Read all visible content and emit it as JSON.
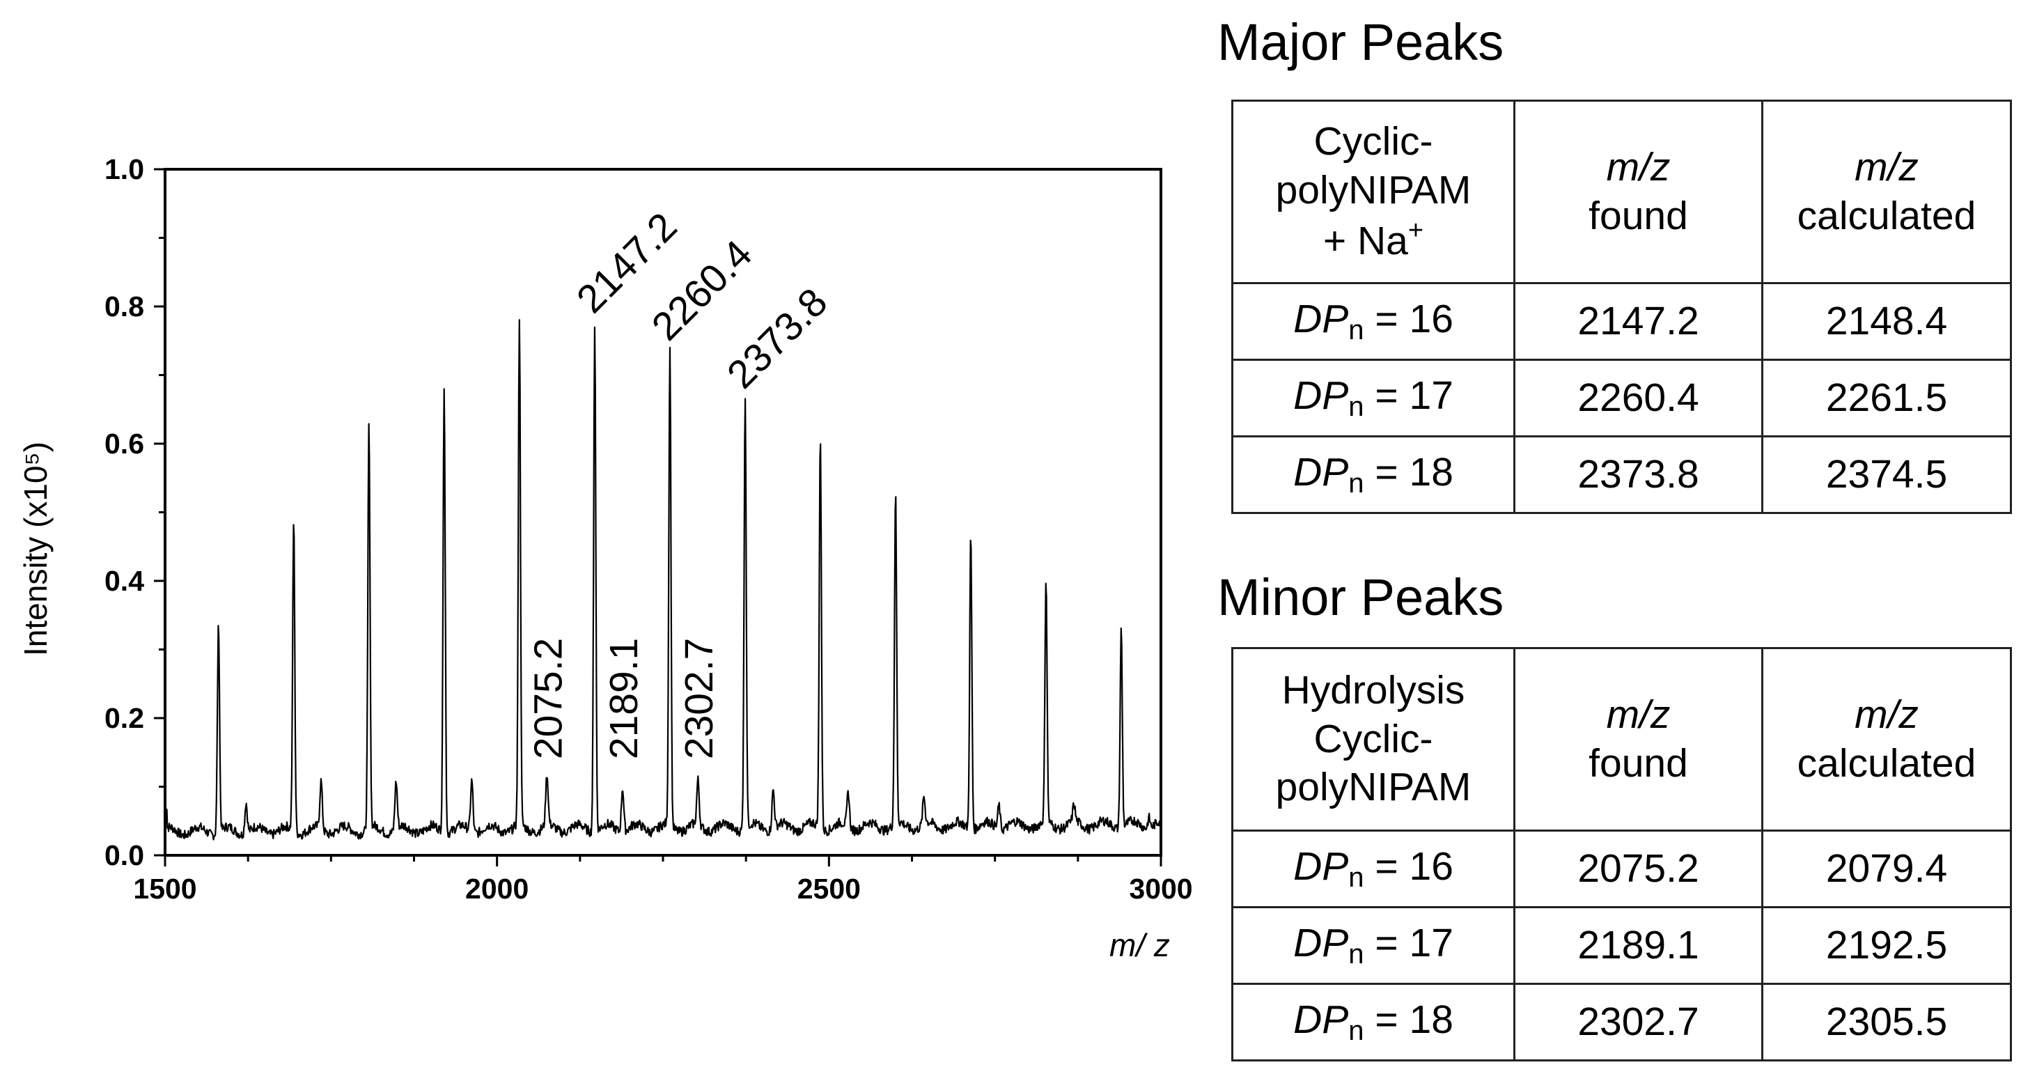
{
  "chart_data": {
    "type": "line",
    "title": "",
    "xlabel": "m/ z",
    "ylabel": "Intensity (x10⁵)",
    "xlim": [
      1500,
      3000
    ],
    "ylim": [
      0,
      1.0
    ],
    "xticks": [
      "1500",
      "2000",
      "2500",
      "3000"
    ],
    "yticks": [
      "0.0",
      "0.2",
      "0.4",
      "0.6",
      "0.8",
      "1.0"
    ],
    "major_peaks": {
      "x": [
        1580.5,
        1693.8,
        1807.1,
        1920.4,
        2033.7,
        2147.2,
        2260.4,
        2373.8,
        2487.0,
        2600.3,
        2713.6,
        2826.9,
        2940.2
      ],
      "y": [
        0.34,
        0.49,
        0.625,
        0.69,
        0.775,
        0.775,
        0.735,
        0.665,
        0.61,
        0.52,
        0.465,
        0.39,
        0.325
      ]
    },
    "minor_peaks": {
      "x": [
        1622,
        1735,
        1848,
        1962,
        2075.2,
        2189.1,
        2302.7,
        2416,
        2529,
        2643,
        2756,
        2869,
        2982
      ],
      "y": [
        0.08,
        0.105,
        0.105,
        0.11,
        0.11,
        0.1,
        0.1,
        0.092,
        0.085,
        0.075,
        0.07,
        0.06,
        0.05
      ]
    },
    "baseline": 0.035,
    "peak_annotations": [
      {
        "text": "2147.2",
        "x": 2147.2,
        "orientation": "diagonal"
      },
      {
        "text": "2260.4",
        "x": 2260.4,
        "orientation": "diagonal"
      },
      {
        "text": "2373.8",
        "x": 2373.8,
        "orientation": "diagonal"
      },
      {
        "text": "2075.2",
        "x": 2075.2,
        "orientation": "vertical"
      },
      {
        "text": "2189.1",
        "x": 2189.1,
        "orientation": "vertical"
      },
      {
        "text": "2302.7",
        "x": 2302.7,
        "orientation": "vertical"
      }
    ]
  },
  "major": {
    "title": "Major Peaks",
    "header": {
      "col1": [
        "Cyclic-",
        "polyNIPAM",
        "+ Na",
        "+"
      ],
      "col2": [
        "m/z",
        "found"
      ],
      "col3": [
        "m/z",
        "calculated"
      ]
    },
    "rows": [
      {
        "dp": "DP",
        "sub": "n",
        "eq": " = 16",
        "found": "2147.2",
        "calc": "2148.4"
      },
      {
        "dp": "DP",
        "sub": "n",
        "eq": " = 17",
        "found": "2260.4",
        "calc": "2261.5"
      },
      {
        "dp": "DP",
        "sub": "n",
        "eq": " = 18",
        "found": "2373.8",
        "calc": "2374.5"
      }
    ]
  },
  "minor": {
    "title": "Minor Peaks",
    "header": {
      "col1": [
        "Hydrolysis",
        "Cyclic-",
        "polyNIPAM"
      ],
      "col2": [
        "m/z",
        "found"
      ],
      "col3": [
        "m/z",
        "calculated"
      ]
    },
    "rows": [
      {
        "dp": "DP",
        "sub": "n",
        "eq": " = 16",
        "found": "2075.2",
        "calc": "2079.4"
      },
      {
        "dp": "DP",
        "sub": "n",
        "eq": " = 17",
        "found": "2189.1",
        "calc": "2192.5"
      },
      {
        "dp": "DP",
        "sub": "n",
        "eq": " = 18",
        "found": "2302.7",
        "calc": "2305.5"
      }
    ]
  }
}
